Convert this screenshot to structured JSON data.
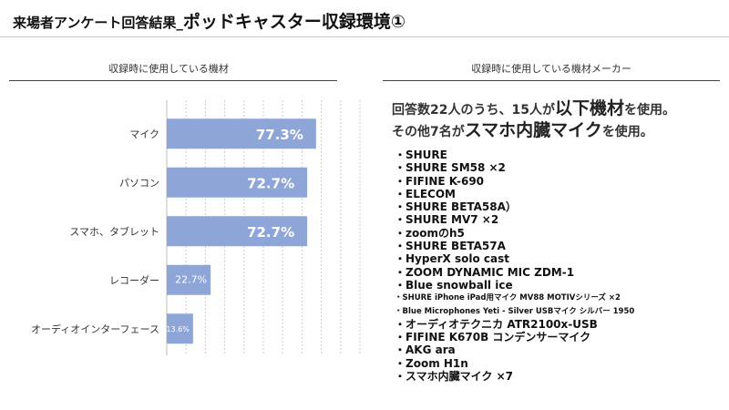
{
  "page": {
    "title_prefix": "来場者アンケート回答結果_",
    "title_main": "ポッドキャスター収録環境①"
  },
  "left_panel": {
    "heading": "収録時に使用している機材"
  },
  "right_panel": {
    "heading": "収録時に使用している機材メーカー",
    "line1": {
      "a": "回答数22人のうち、15人が",
      "b": "以下機材",
      "c": "を使用。"
    },
    "line2": {
      "a": "その他7名が",
      "b": "スマホ内臓マイク",
      "c": "を使用。"
    },
    "makers": [
      "・SHURE",
      "・SHURE SM58 ×2",
      "・FIFINE K-690",
      "・ELECOM",
      "・SHURE BETA58A）",
      "・SHURE MV7 ×2",
      "・zoomのh5",
      "・SHURE BETA57A",
      "・HyperX solo cast",
      "・ZOOM DYNAMIC MIC ZDM-1",
      "・Blue snowball ice",
      "・SHURE iPhone iPad用マイク MV88 MOTIVシリーズ ×2",
      "・Blue Microphones Yeti - Silver USBマイク シルバー 1950",
      "・オーディオテクニカ ATR2100x-USB",
      "・FIFINE K670B コンデンサーマイク",
      "・AKG ara",
      "・Zoom H1n",
      "・スマホ内臓マイク ×7"
    ]
  },
  "chart_data": {
    "type": "bar",
    "orientation": "horizontal",
    "title": "収録時に使用している機材",
    "categories": [
      "マイク",
      "パソコン",
      "スマホ、タブレット",
      "レコーダー",
      "オーディオインターフェース"
    ],
    "values": [
      77.3,
      72.7,
      72.7,
      22.7,
      13.6
    ],
    "value_labels": [
      "77.3%",
      "72.7%",
      "72.7%",
      "22.7%",
      "13.6%"
    ],
    "xlim": [
      0,
      100
    ],
    "grid": true,
    "bar_color": "#8ea5d8"
  }
}
